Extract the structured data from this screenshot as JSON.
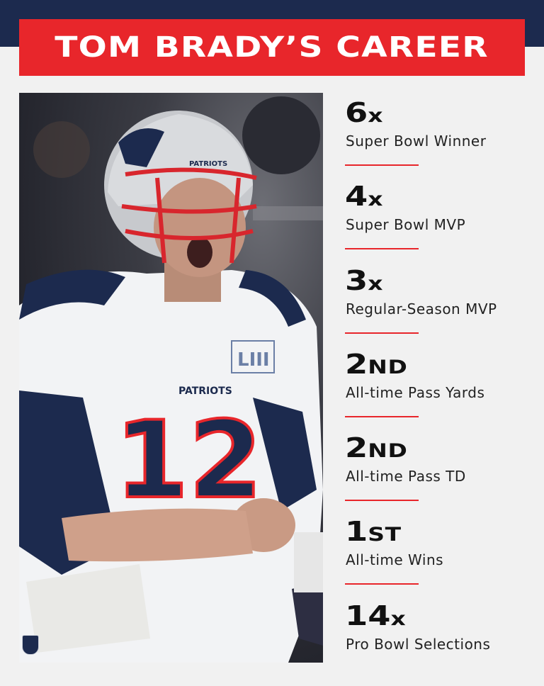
{
  "title": "TOM BRADY’S CAREER",
  "colors": {
    "accent": "#e8262b",
    "navy": "#1c2a4e",
    "background": "#f1f1f1"
  },
  "photo": {
    "jersey_number": "12",
    "helmet_text": "PATRIOTS",
    "chest_text": "PATRIOTS",
    "patch_text": "LIII"
  },
  "stats": [
    {
      "value": "6",
      "suffix": "x",
      "label": "Super Bowl Winner"
    },
    {
      "value": "4",
      "suffix": "x",
      "label": "Super Bowl MVP"
    },
    {
      "value": "3",
      "suffix": "x",
      "label": "Regular-Season MVP"
    },
    {
      "value": "2",
      "suffix": "ND",
      "label": "All-time Pass Yards"
    },
    {
      "value": "2",
      "suffix": "ND",
      "label": "All-time Pass TD"
    },
    {
      "value": "1",
      "suffix": "ST",
      "label": "All-time Wins"
    },
    {
      "value": "14",
      "suffix": "x",
      "label": "Pro Bowl Selections"
    }
  ]
}
